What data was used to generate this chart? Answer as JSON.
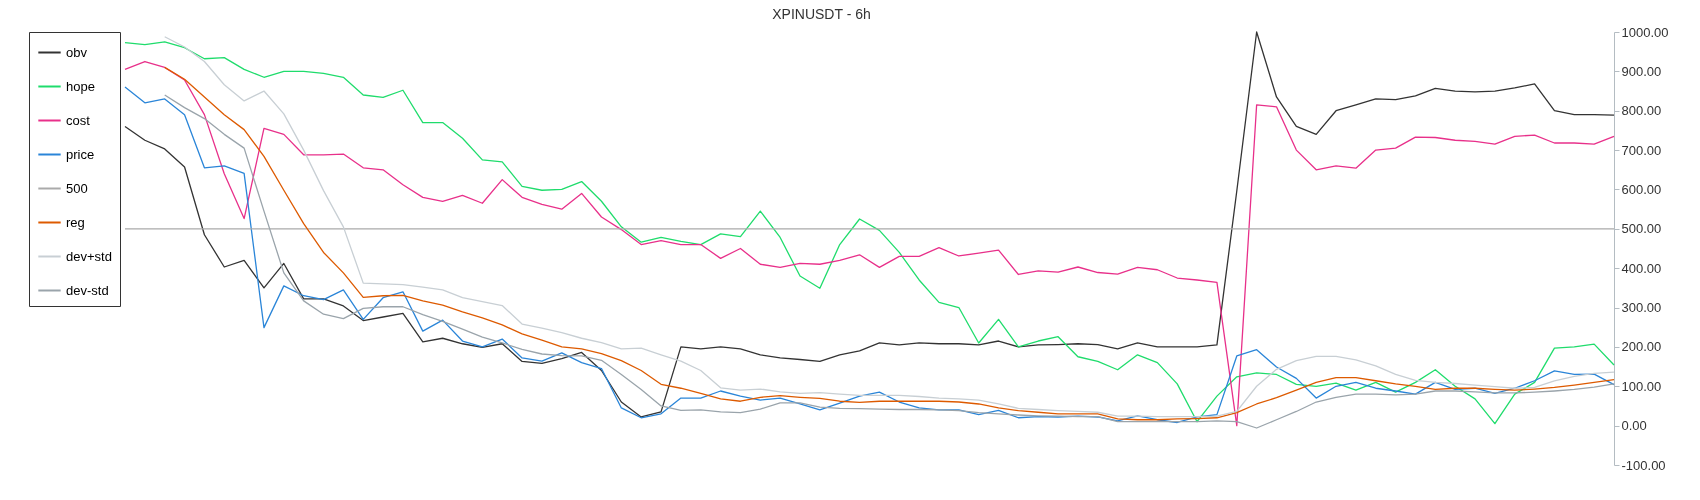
{
  "chart_data": {
    "type": "line",
    "title": "XPINUSDT - 6h",
    "categories": [
      null,
      null,
      null,
      null,
      null,
      null,
      null,
      null,
      null,
      null,
      null,
      null,
      null,
      null,
      null,
      null,
      null,
      null,
      null,
      null,
      null,
      null,
      null,
      null,
      null,
      null,
      null,
      null,
      null,
      null,
      null,
      null,
      null,
      null,
      null,
      null,
      null,
      null,
      null,
      null,
      null,
      null,
      null,
      null,
      null,
      null,
      null,
      null,
      null,
      null,
      null,
      null,
      null,
      null,
      null,
      null,
      null,
      null,
      null,
      null,
      null,
      null,
      null,
      null,
      null,
      null,
      null,
      null,
      null,
      null,
      null,
      null,
      null,
      null,
      null,
      null
    ],
    "ylim": [
      -100,
      1000
    ],
    "yticks": [
      {
        "value": -100,
        "label": "-100.00"
      },
      {
        "value": 0,
        "label": "0.00"
      },
      {
        "value": 100,
        "label": "100.00"
      },
      {
        "value": 200,
        "label": "200.00"
      },
      {
        "value": 300,
        "label": "300.00"
      },
      {
        "value": 400,
        "label": "400.00"
      },
      {
        "value": 500,
        "label": "500.00"
      },
      {
        "value": 600,
        "label": "600.00"
      },
      {
        "value": 700,
        "label": "700.00"
      },
      {
        "value": 800,
        "label": "800.00"
      },
      {
        "value": 900,
        "label": "900.00"
      },
      {
        "value": 1000,
        "label": "1000.00"
      }
    ],
    "grid": false,
    "legend": "top left",
    "marker": "none",
    "line_style": "solid",
    "series": [
      {
        "name": "obv",
        "color": "#333333",
        "values": [
          760,
          725,
          703,
          657,
          485,
          403,
          420,
          350,
          412,
          322,
          322,
          304,
          267,
          276,
          285,
          213,
          222,
          208,
          199,
          208,
          163,
          158,
          170,
          186,
          140,
          60,
          22,
          35,
          200,
          195,
          200,
          195,
          180,
          172,
          168,
          163,
          180,
          190,
          210,
          205,
          210,
          208,
          208,
          205,
          215,
          200,
          205,
          206,
          208,
          206,
          195,
          210,
          200,
          200,
          200,
          205,
          596,
          1000,
          835,
          760,
          740,
          800,
          815,
          830,
          828,
          838,
          857,
          850,
          848,
          850,
          858,
          868,
          800,
          790,
          790,
          789
        ]
      },
      {
        "name": "hope",
        "color": "#1fdc6c",
        "values": [
          973,
          968,
          975,
          960,
          932,
          935,
          905,
          885,
          900,
          900,
          895,
          885,
          840,
          834,
          852,
          770,
          770,
          730,
          675,
          670,
          608,
          598,
          600,
          620,
          570,
          505,
          466,
          478,
          468,
          460,
          487,
          480,
          545,
          478,
          380,
          349,
          460,
          525,
          496,
          440,
          370,
          313,
          300,
          210,
          270,
          200,
          215,
          226,
          175,
          163,
          142,
          180,
          160,
          106,
          10,
          75,
          124,
          134,
          130,
          105,
          100,
          108,
          90,
          110,
          85,
          110,
          142,
          100,
          68,
          5,
          80,
          110,
          197,
          200,
          207,
          154
        ]
      },
      {
        "name": "cost",
        "color": "#e8308a",
        "values": [
          905,
          925,
          910,
          878,
          790,
          640,
          526,
          755,
          740,
          688,
          688,
          690,
          655,
          650,
          612,
          580,
          570,
          585,
          565,
          625,
          580,
          562,
          550,
          590,
          530,
          498,
          460,
          470,
          460,
          460,
          425,
          450,
          410,
          402,
          412,
          410,
          420,
          434,
          402,
          430,
          430,
          452,
          431,
          438,
          446,
          384,
          393,
          390,
          403,
          389,
          385,
          402,
          396,
          375,
          370,
          364,
          0,
          815,
          810,
          700,
          650,
          660,
          654,
          700,
          705,
          733,
          732,
          725,
          722,
          715,
          735,
          738,
          718,
          718,
          715,
          735
        ]
      },
      {
        "name": "price",
        "color": "#2a85d8",
        "values": [
          860,
          820,
          830,
          790,
          655,
          660,
          641,
          249,
          355,
          330,
          320,
          345,
          270,
          325,
          340,
          240,
          268,
          215,
          200,
          220,
          172,
          164,
          185,
          160,
          145,
          45,
          20,
          30,
          70,
          70,
          88,
          75,
          65,
          70,
          55,
          40,
          57,
          75,
          85,
          60,
          45,
          40,
          40,
          28,
          39,
          20,
          23,
          22,
          24,
          22,
          12,
          25,
          15,
          8,
          22,
          28,
          177,
          193,
          149,
          120,
          70,
          100,
          110,
          95,
          88,
          80,
          110,
          92,
          95,
          82,
          95,
          114,
          139,
          130,
          131,
          104
        ]
      },
      {
        "name": "500",
        "color": "#aaaaaa",
        "values": [
          500,
          500,
          500,
          500,
          500,
          500,
          500,
          500,
          500,
          500,
          500,
          500,
          500,
          500,
          500,
          500,
          500,
          500,
          500,
          500,
          500,
          500,
          500,
          500,
          500,
          500,
          500,
          500,
          500,
          500,
          500,
          500,
          500,
          500,
          500,
          500,
          500,
          500,
          500,
          500,
          500,
          500,
          500,
          500,
          500,
          500,
          500,
          500,
          500,
          500,
          500,
          500,
          500,
          500,
          500,
          500,
          500,
          500,
          500,
          500,
          500,
          500,
          500,
          500,
          500,
          500,
          500,
          500,
          500,
          500,
          500,
          500,
          500,
          500,
          500,
          500
        ]
      },
      {
        "name": "reg",
        "color": "#dd5a00",
        "values": [
          null,
          null,
          910,
          880,
          835,
          790,
          752,
          684,
          598,
          513,
          440,
          388,
          326,
          330,
          331,
          317,
          306,
          289,
          274,
          256,
          233,
          217,
          200,
          195,
          183,
          165,
          140,
          105,
          95,
          82,
          68,
          62,
          72,
          76,
          72,
          69,
          62,
          59,
          62,
          62,
          62,
          62,
          60,
          55,
          45,
          38,
          34,
          30,
          30,
          30,
          17,
          15,
          15,
          17,
          18,
          20,
          33,
          55,
          71,
          90,
          110,
          122,
          122,
          114,
          106,
          100,
          92,
          95,
          95,
          92,
          90,
          93,
          97,
          103,
          110,
          117
        ]
      },
      {
        "name": "dev+std",
        "color": "#c8cfd4",
        "values": [
          null,
          null,
          988,
          962,
          925,
          866,
          825,
          850,
          792,
          700,
          597,
          505,
          362,
          360,
          358,
          352,
          345,
          325,
          315,
          305,
          258,
          248,
          236,
          222,
          211,
          195,
          197,
          180,
          164,
          140,
          96,
          90,
          93,
          86,
          82,
          84,
          80,
          77,
          77,
          77,
          74,
          70,
          68,
          65,
          55,
          44,
          41,
          38,
          36,
          34,
          24,
          24,
          23,
          23,
          23,
          24,
          36,
          100,
          143,
          165,
          176,
          176,
          167,
          152,
          130,
          115,
          110,
          107,
          103,
          99,
          95,
          97,
          114,
          125,
          133,
          136
        ]
      },
      {
        "name": "dev-std",
        "color": "#9aa4ab",
        "values": [
          null,
          null,
          840,
          808,
          780,
          740,
          705,
          545,
          388,
          317,
          283,
          272,
          298,
          302,
          302,
          282,
          265,
          245,
          225,
          210,
          194,
          182,
          178,
          177,
          166,
          130,
          92,
          50,
          39,
          40,
          35,
          33,
          42,
          58,
          58,
          47,
          44,
          43,
          42,
          41,
          41,
          40,
          38,
          33,
          30,
          27,
          25,
          24,
          23,
          23,
          10,
          10,
          10,
          10,
          10,
          12,
          10,
          -6,
          15,
          36,
          60,
          72,
          80,
          80,
          78,
          80,
          88,
          88,
          86,
          83,
          83,
          85,
          88,
          92,
          98,
          106
        ]
      }
    ]
  }
}
